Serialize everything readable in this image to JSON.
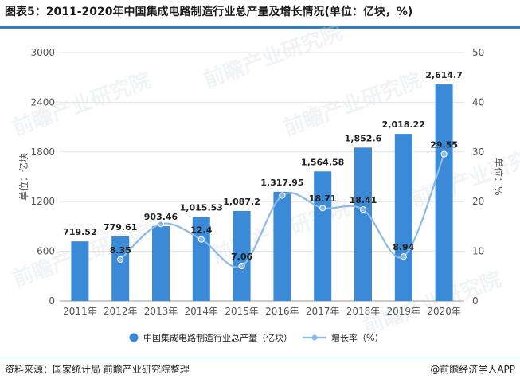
{
  "title": "图表5：2011-2020年中国集成电路制造行业总产量及增长情况(单位：亿块，%)",
  "source": "资料来源：国家统计局 前瞻产业研究院整理",
  "credit": "@前瞻经济学人APP",
  "watermark": "前瞻产业研究院",
  "colors": {
    "bar": "#3a8ad8",
    "line": "#8dbbe6",
    "accent": "#2f7fc1"
  },
  "chart_data": {
    "type": "bar",
    "categories": [
      "2011年",
      "2012年",
      "2013年",
      "2014年",
      "2015年",
      "2016年",
      "2017年",
      "2018年",
      "2019年",
      "2020年"
    ],
    "series": [
      {
        "name": "中国集成电路制造行业总产量（亿块）",
        "type": "bar",
        "axis": "left",
        "values": [
          719.52,
          779.61,
          903.46,
          1015.53,
          1087.2,
          1317.95,
          1564.58,
          1852.6,
          2018.22,
          2614.7
        ],
        "labels": [
          "719.52",
          "779.61",
          "903.46",
          "1,015.53",
          "1,087.2",
          "1,317.95",
          "1,564.58",
          "1,852.6",
          "2,018.22",
          "2,614.7"
        ]
      },
      {
        "name": "增长率（%）",
        "type": "line",
        "axis": "right",
        "values": [
          null,
          8.35,
          15.5,
          12.4,
          7.06,
          21.23,
          18.71,
          18.41,
          8.94,
          29.55
        ],
        "labels": [
          "",
          "8.35",
          "",
          "12.4",
          "7.06",
          "",
          "18.71",
          "18.41",
          "8.94",
          "29.55"
        ]
      }
    ],
    "ylabel_left": "单位：亿块",
    "ylabel_right": "单位：%",
    "ylim_left": [
      0,
      3000
    ],
    "ylim_right": [
      0,
      50
    ],
    "yticks_left": [
      "0",
      "600",
      "1200",
      "1800",
      "2400",
      "3000"
    ],
    "yticks_right": [
      "0",
      "10",
      "20",
      "30",
      "40",
      "50"
    ],
    "grid": true,
    "legend_position": "bottom"
  }
}
